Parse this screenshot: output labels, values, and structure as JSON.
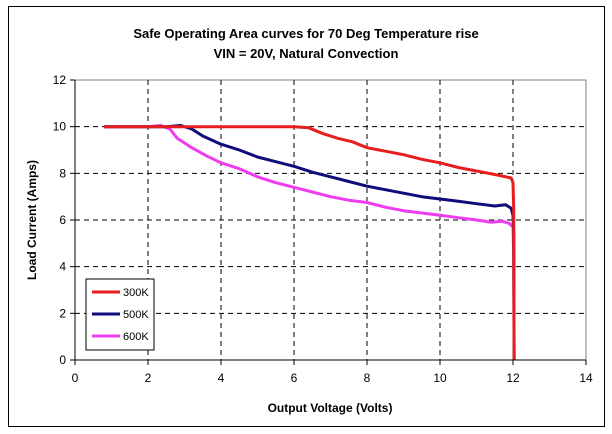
{
  "chart_data": {
    "type": "line",
    "title": "Safe Operating Area curves for 70 Deg Temperature rise",
    "subtitle": "VIN = 20V, Natural Convection",
    "xlabel": "Output Voltage (Volts)",
    "ylabel": "Load Current (Amps)",
    "xlim": [
      0,
      14
    ],
    "ylim": [
      0,
      12
    ],
    "xticks": [
      0,
      2,
      4,
      6,
      8,
      10,
      12,
      14
    ],
    "yticks": [
      0,
      2,
      4,
      6,
      8,
      10,
      12
    ],
    "grid": "dashed",
    "legend": "bottom-left",
    "series": [
      {
        "name": "300K",
        "color": "#e81d1d",
        "points": [
          [
            0.8,
            10
          ],
          [
            2.0,
            10
          ],
          [
            3.0,
            10
          ],
          [
            4.0,
            10
          ],
          [
            5.0,
            10
          ],
          [
            6.0,
            10
          ],
          [
            6.4,
            9.95
          ],
          [
            6.8,
            9.7
          ],
          [
            7.2,
            9.5
          ],
          [
            7.6,
            9.35
          ],
          [
            8.0,
            9.1
          ],
          [
            8.5,
            8.95
          ],
          [
            9.0,
            8.8
          ],
          [
            9.5,
            8.6
          ],
          [
            10.0,
            8.45
          ],
          [
            10.5,
            8.25
          ],
          [
            11.0,
            8.1
          ],
          [
            11.5,
            7.95
          ],
          [
            11.8,
            7.85
          ],
          [
            11.95,
            7.8
          ],
          [
            12.0,
            7.6
          ],
          [
            12.02,
            6.5
          ],
          [
            12.03,
            0
          ]
        ]
      },
      {
        "name": "500K",
        "color": "#0e0e7a",
        "points": [
          [
            0.8,
            10
          ],
          [
            2.0,
            10
          ],
          [
            2.5,
            10
          ],
          [
            2.9,
            10.05
          ],
          [
            3.2,
            9.9
          ],
          [
            3.5,
            9.6
          ],
          [
            4.0,
            9.25
          ],
          [
            4.5,
            9.0
          ],
          [
            5.0,
            8.7
          ],
          [
            5.5,
            8.5
          ],
          [
            6.0,
            8.3
          ],
          [
            6.5,
            8.05
          ],
          [
            7.0,
            7.85
          ],
          [
            7.5,
            7.65
          ],
          [
            8.0,
            7.45
          ],
          [
            8.5,
            7.3
          ],
          [
            9.0,
            7.15
          ],
          [
            9.5,
            7.0
          ],
          [
            10.0,
            6.9
          ],
          [
            10.5,
            6.8
          ],
          [
            11.0,
            6.7
          ],
          [
            11.5,
            6.6
          ],
          [
            11.8,
            6.65
          ],
          [
            11.95,
            6.5
          ],
          [
            12.0,
            6.2
          ],
          [
            12.02,
            5.5
          ],
          [
            12.03,
            0
          ]
        ]
      },
      {
        "name": "600K",
        "color": "#f03cf0",
        "points": [
          [
            0.8,
            10
          ],
          [
            2.0,
            10
          ],
          [
            2.35,
            10.05
          ],
          [
            2.6,
            9.9
          ],
          [
            2.8,
            9.5
          ],
          [
            3.2,
            9.1
          ],
          [
            3.6,
            8.75
          ],
          [
            4.0,
            8.45
          ],
          [
            4.5,
            8.2
          ],
          [
            5.0,
            7.85
          ],
          [
            5.5,
            7.6
          ],
          [
            6.0,
            7.4
          ],
          [
            6.5,
            7.2
          ],
          [
            7.0,
            7.0
          ],
          [
            7.5,
            6.85
          ],
          [
            8.0,
            6.75
          ],
          [
            8.5,
            6.55
          ],
          [
            9.0,
            6.4
          ],
          [
            9.5,
            6.3
          ],
          [
            10.0,
            6.2
          ],
          [
            10.5,
            6.1
          ],
          [
            11.0,
            6.0
          ],
          [
            11.4,
            5.9
          ],
          [
            11.7,
            5.95
          ],
          [
            11.9,
            5.85
          ],
          [
            12.0,
            5.7
          ],
          [
            12.02,
            4.5
          ],
          [
            12.03,
            0
          ]
        ]
      }
    ]
  }
}
